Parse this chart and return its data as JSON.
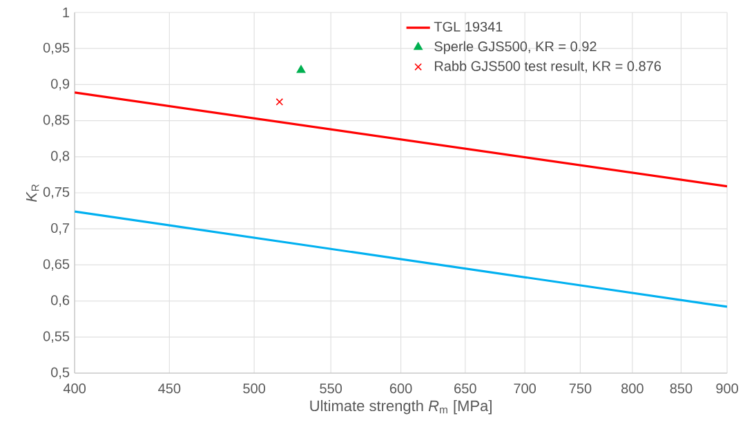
{
  "chart_data": {
    "type": "line",
    "xlabel": "Ultimate strength *R*$_{m}$ [MPa]",
    "ylabel": "*K*$_{R}$",
    "log": "x",
    "grid": true,
    "legend": "top right",
    "xlim": [
      400,
      900
    ],
    "xticks": [
      400,
      450,
      500,
      550,
      600,
      650,
      700,
      750,
      800,
      850,
      900
    ],
    "ylim": [
      0.5,
      1
    ],
    "yticks": [
      {
        "value": 0.5,
        "label": "0,5"
      },
      {
        "value": 0.55,
        "label": "0,55"
      },
      {
        "value": 0.6,
        "label": "0,6"
      },
      {
        "value": 0.65,
        "label": "0,65"
      },
      {
        "value": 0.7,
        "label": "0,7"
      },
      {
        "value": 0.75,
        "label": "0,75"
      },
      {
        "value": 0.8,
        "label": "0,8"
      },
      {
        "value": 0.85,
        "label": "0,85"
      },
      {
        "value": 0.9,
        "label": "0,9"
      },
      {
        "value": 0.95,
        "label": "0,95"
      },
      {
        "value": 1,
        "label": "1"
      }
    ],
    "series": [
      {
        "name": "TGL 19341",
        "color": "#ff0000",
        "x": [
          400,
          900
        ],
        "values": [
          0.889,
          0.759
        ]
      },
      {
        "color": "#00b0f0",
        "x": [
          400,
          900
        ],
        "values": [
          0.724,
          0.592
        ]
      },
      {
        "name": "Sperle GJS500, KR = 0.92",
        "type": "scatter",
        "marker": "triangle",
        "color": "#00b050",
        "x": [
          530
        ],
        "values": [
          0.92
        ]
      },
      {
        "name": "Rabb GJS500 test result, KR = 0.876",
        "type": "scatter",
        "marker": "cross",
        "color": "#ff0000",
        "x": [
          516
        ],
        "values": [
          0.876
        ]
      }
    ]
  }
}
